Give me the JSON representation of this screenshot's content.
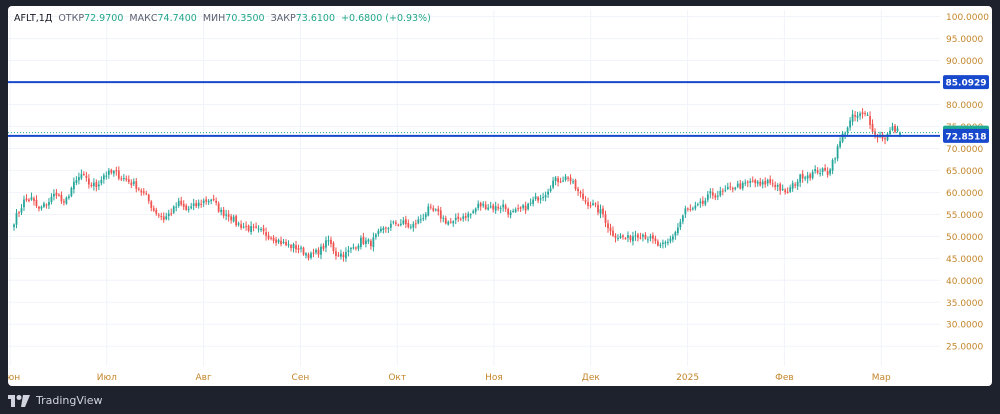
{
  "legend": {
    "symbol": "AFLT",
    "interval": "1Д",
    "open_label": "ОТКР",
    "open": "72.9700",
    "high_label": "МАКС",
    "high": "74.7400",
    "low_label": "МИН",
    "low": "70.3500",
    "close_label": "ЗАКР",
    "close": "73.6100",
    "change": "+0.6800 (+0.93%)"
  },
  "footer": {
    "brand": "TradingView"
  },
  "chart_data": {
    "type": "candlestick",
    "y_ticks": [
      "100.0000",
      "95.0000",
      "90.0000",
      "85.0000",
      "80.0000",
      "75.0000",
      "70.0000",
      "65.0000",
      "60.0000",
      "55.0000",
      "50.0000",
      "45.0000",
      "40.0000",
      "35.0000",
      "30.0000",
      "25.0000"
    ],
    "ylim": [
      20.5,
      101.5
    ],
    "x_ticks": [
      "Июн",
      "Июл",
      "Авг",
      "Сен",
      "Окт",
      "Ноя",
      "Дек",
      "2025",
      "Фев",
      "Мар"
    ],
    "grid": true,
    "horizontal_lines": [
      {
        "value": 85.0929,
        "label": "85.0929",
        "color": "#1848cc"
      },
      {
        "value": 72.8518,
        "label": "72.8518",
        "color": "#1848cc"
      }
    ],
    "last_price": {
      "value": 73.61,
      "label": "73.6100",
      "color": "#22ab94"
    },
    "colors": {
      "up": "#26a69a",
      "down": "#ef5350",
      "axis_text": "#c4862b"
    },
    "path": [
      [
        0,
        53.5
      ],
      [
        4,
        58
      ],
      [
        7,
        58.5
      ],
      [
        10,
        56
      ],
      [
        14,
        58
      ],
      [
        17,
        60
      ],
      [
        20,
        57
      ],
      [
        23,
        61
      ],
      [
        27,
        64
      ],
      [
        30,
        62
      ],
      [
        33,
        61.5
      ],
      [
        36,
        64
      ],
      [
        40,
        64.5
      ],
      [
        43,
        63.5
      ],
      [
        46,
        62.5
      ],
      [
        49,
        61.5
      ],
      [
        53,
        59
      ],
      [
        56,
        56
      ],
      [
        60,
        54
      ],
      [
        63,
        55.5
      ],
      [
        66,
        57.5
      ],
      [
        69,
        56
      ],
      [
        73,
        57
      ],
      [
        76,
        58
      ],
      [
        79,
        58.5
      ],
      [
        83,
        55.5
      ],
      [
        86,
        55
      ],
      [
        89,
        53
      ],
      [
        93,
        52
      ],
      [
        96,
        51.5
      ],
      [
        99,
        51
      ],
      [
        103,
        50
      ],
      [
        106,
        49
      ],
      [
        109,
        48
      ],
      [
        113,
        47.5
      ],
      [
        116,
        46.5
      ],
      [
        119,
        45.5
      ],
      [
        123,
        47
      ],
      [
        126,
        49
      ],
      [
        129,
        46
      ],
      [
        133,
        46
      ],
      [
        136,
        47.5
      ],
      [
        139,
        49
      ],
      [
        143,
        48.5
      ],
      [
        146,
        50.5
      ],
      [
        149,
        52
      ],
      [
        153,
        53
      ],
      [
        156,
        53
      ],
      [
        159,
        52
      ],
      [
        163,
        54
      ],
      [
        166,
        56
      ],
      [
        169,
        55.5
      ],
      [
        173,
        53.5
      ],
      [
        176,
        53
      ],
      [
        179,
        54.5
      ],
      [
        183,
        55
      ],
      [
        186,
        57
      ],
      [
        189,
        57
      ],
      [
        193,
        56.5
      ],
      [
        196,
        57
      ],
      [
        199,
        55
      ],
      [
        203,
        56
      ],
      [
        206,
        57
      ],
      [
        209,
        58.5
      ],
      [
        213,
        60
      ],
      [
        216,
        62.5
      ],
      [
        219,
        63
      ],
      [
        222,
        63.5
      ],
      [
        226,
        60
      ],
      [
        229,
        58
      ],
      [
        232,
        57
      ],
      [
        236,
        55
      ],
      [
        239,
        51
      ],
      [
        242,
        50
      ],
      [
        246,
        49.5
      ],
      [
        249,
        50.5
      ],
      [
        252,
        50.5
      ],
      [
        256,
        49
      ],
      [
        259,
        47.5
      ],
      [
        262,
        48.5
      ],
      [
        266,
        52
      ],
      [
        269,
        56
      ],
      [
        272,
        56
      ],
      [
        276,
        57.5
      ],
      [
        279,
        59.5
      ],
      [
        282,
        59.5
      ],
      [
        286,
        60.5
      ],
      [
        289,
        61.5
      ],
      [
        292,
        61.5
      ],
      [
        296,
        62.5
      ],
      [
        299,
        61.5
      ],
      [
        302,
        62.5
      ],
      [
        306,
        61.5
      ],
      [
        309,
        59.5
      ],
      [
        312,
        61.5
      ],
      [
        316,
        64
      ],
      [
        319,
        64
      ],
      [
        322,
        65
      ],
      [
        326,
        64.5
      ],
      [
        329,
        68.5
      ],
      [
        332,
        73
      ],
      [
        336,
        77
      ],
      [
        339,
        77.5
      ],
      [
        342,
        77.5
      ],
      [
        345,
        73
      ],
      [
        349,
        72.5
      ],
      [
        352,
        74.5
      ],
      [
        355,
        73.6
      ]
    ]
  }
}
